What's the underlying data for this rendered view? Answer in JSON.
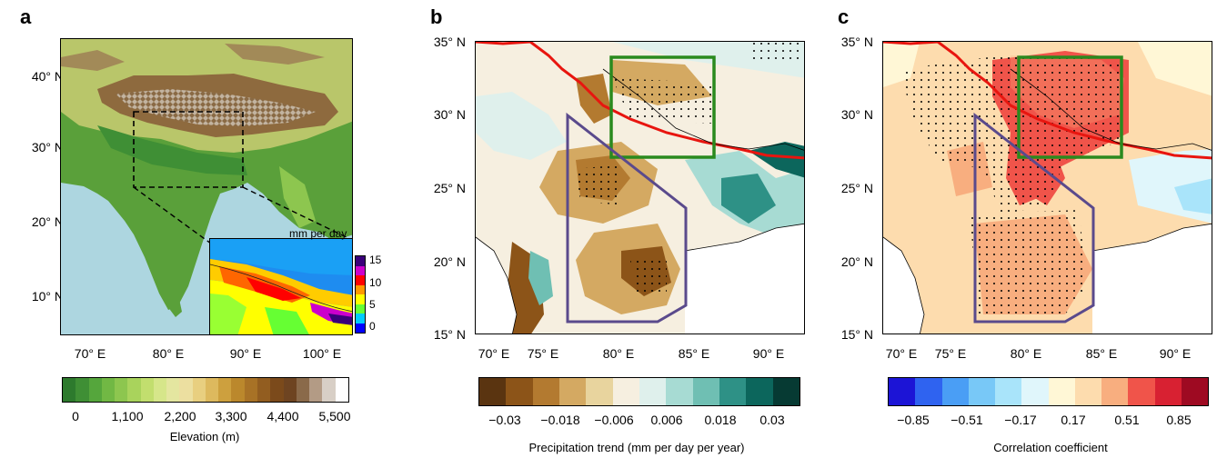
{
  "panels": {
    "a": {
      "letter": "a",
      "lat_labels": [
        "40° N",
        "30° N",
        "20° N",
        "10° N"
      ],
      "lon_labels": [
        "70° E",
        "80° E",
        "90° E",
        "100° E"
      ],
      "inset_unit": "mm per day",
      "inset_ticks": [
        "15",
        "10",
        "5",
        "0"
      ],
      "inset_colors": [
        "#3a007a",
        "#cc00cc",
        "#ff0000",
        "#ff9900",
        "#ffff00",
        "#66ff33",
        "#00ccff",
        "#0000ff"
      ],
      "colorbar_colors": [
        "#2d7a2d",
        "#3f8f35",
        "#55a63c",
        "#71b844",
        "#8dc64f",
        "#a9d35c",
        "#c2de6e",
        "#d6e68a",
        "#e4e6a0",
        "#ecdfa0",
        "#e8cf80",
        "#ddb95e",
        "#cda03e",
        "#bb882c",
        "#a87226",
        "#925d20",
        "#7b4a1b",
        "#6e4421",
        "#8a6a4a",
        "#b39b85",
        "#d8cfc6",
        "#ffffff"
      ],
      "colorbar_ticks": [
        "0",
        "1,100",
        "2,200",
        "3,300",
        "4,400",
        "5,500"
      ],
      "colorbar_label": "Elevation (m)"
    },
    "b": {
      "letter": "b",
      "lat_labels": [
        "35° N",
        "30° N",
        "25° N",
        "20° N",
        "15° N"
      ],
      "lon_labels": [
        "70° E",
        "75° E",
        "80° E",
        "85° E",
        "90° E"
      ],
      "colorbar_colors": [
        "#5a3410",
        "#8c5418",
        "#b37a30",
        "#d4a962",
        "#e8d49e",
        "#f6efe0",
        "#dff0ec",
        "#a7dbd3",
        "#6fbfb3",
        "#2e9186",
        "#0c665c",
        "#063a33"
      ],
      "colorbar_ticks": [
        "−0.03",
        "−0.018",
        "−0.006",
        "0.006",
        "0.018",
        "0.03"
      ],
      "colorbar_label": "Precipitation trend (mm per day  per year)"
    },
    "c": {
      "letter": "c",
      "lat_labels": [
        "35° N",
        "30° N",
        "25° N",
        "20° N",
        "15° N"
      ],
      "lon_labels": [
        "70° E",
        "75° E",
        "80° E",
        "85° E",
        "90° E"
      ],
      "colorbar_colors": [
        "#1c14d6",
        "#2f63f0",
        "#4a9ef5",
        "#78c8f7",
        "#a9e4fa",
        "#e0f6fb",
        "#fff7d6",
        "#fddcae",
        "#f8ae7f",
        "#f0544a",
        "#d82132",
        "#9e0a22"
      ],
      "colorbar_ticks": [
        "−0.85",
        "−0.51",
        "−0.17",
        "0.17",
        "0.51",
        "0.85"
      ],
      "colorbar_label": "Correlation coefficient"
    }
  }
}
